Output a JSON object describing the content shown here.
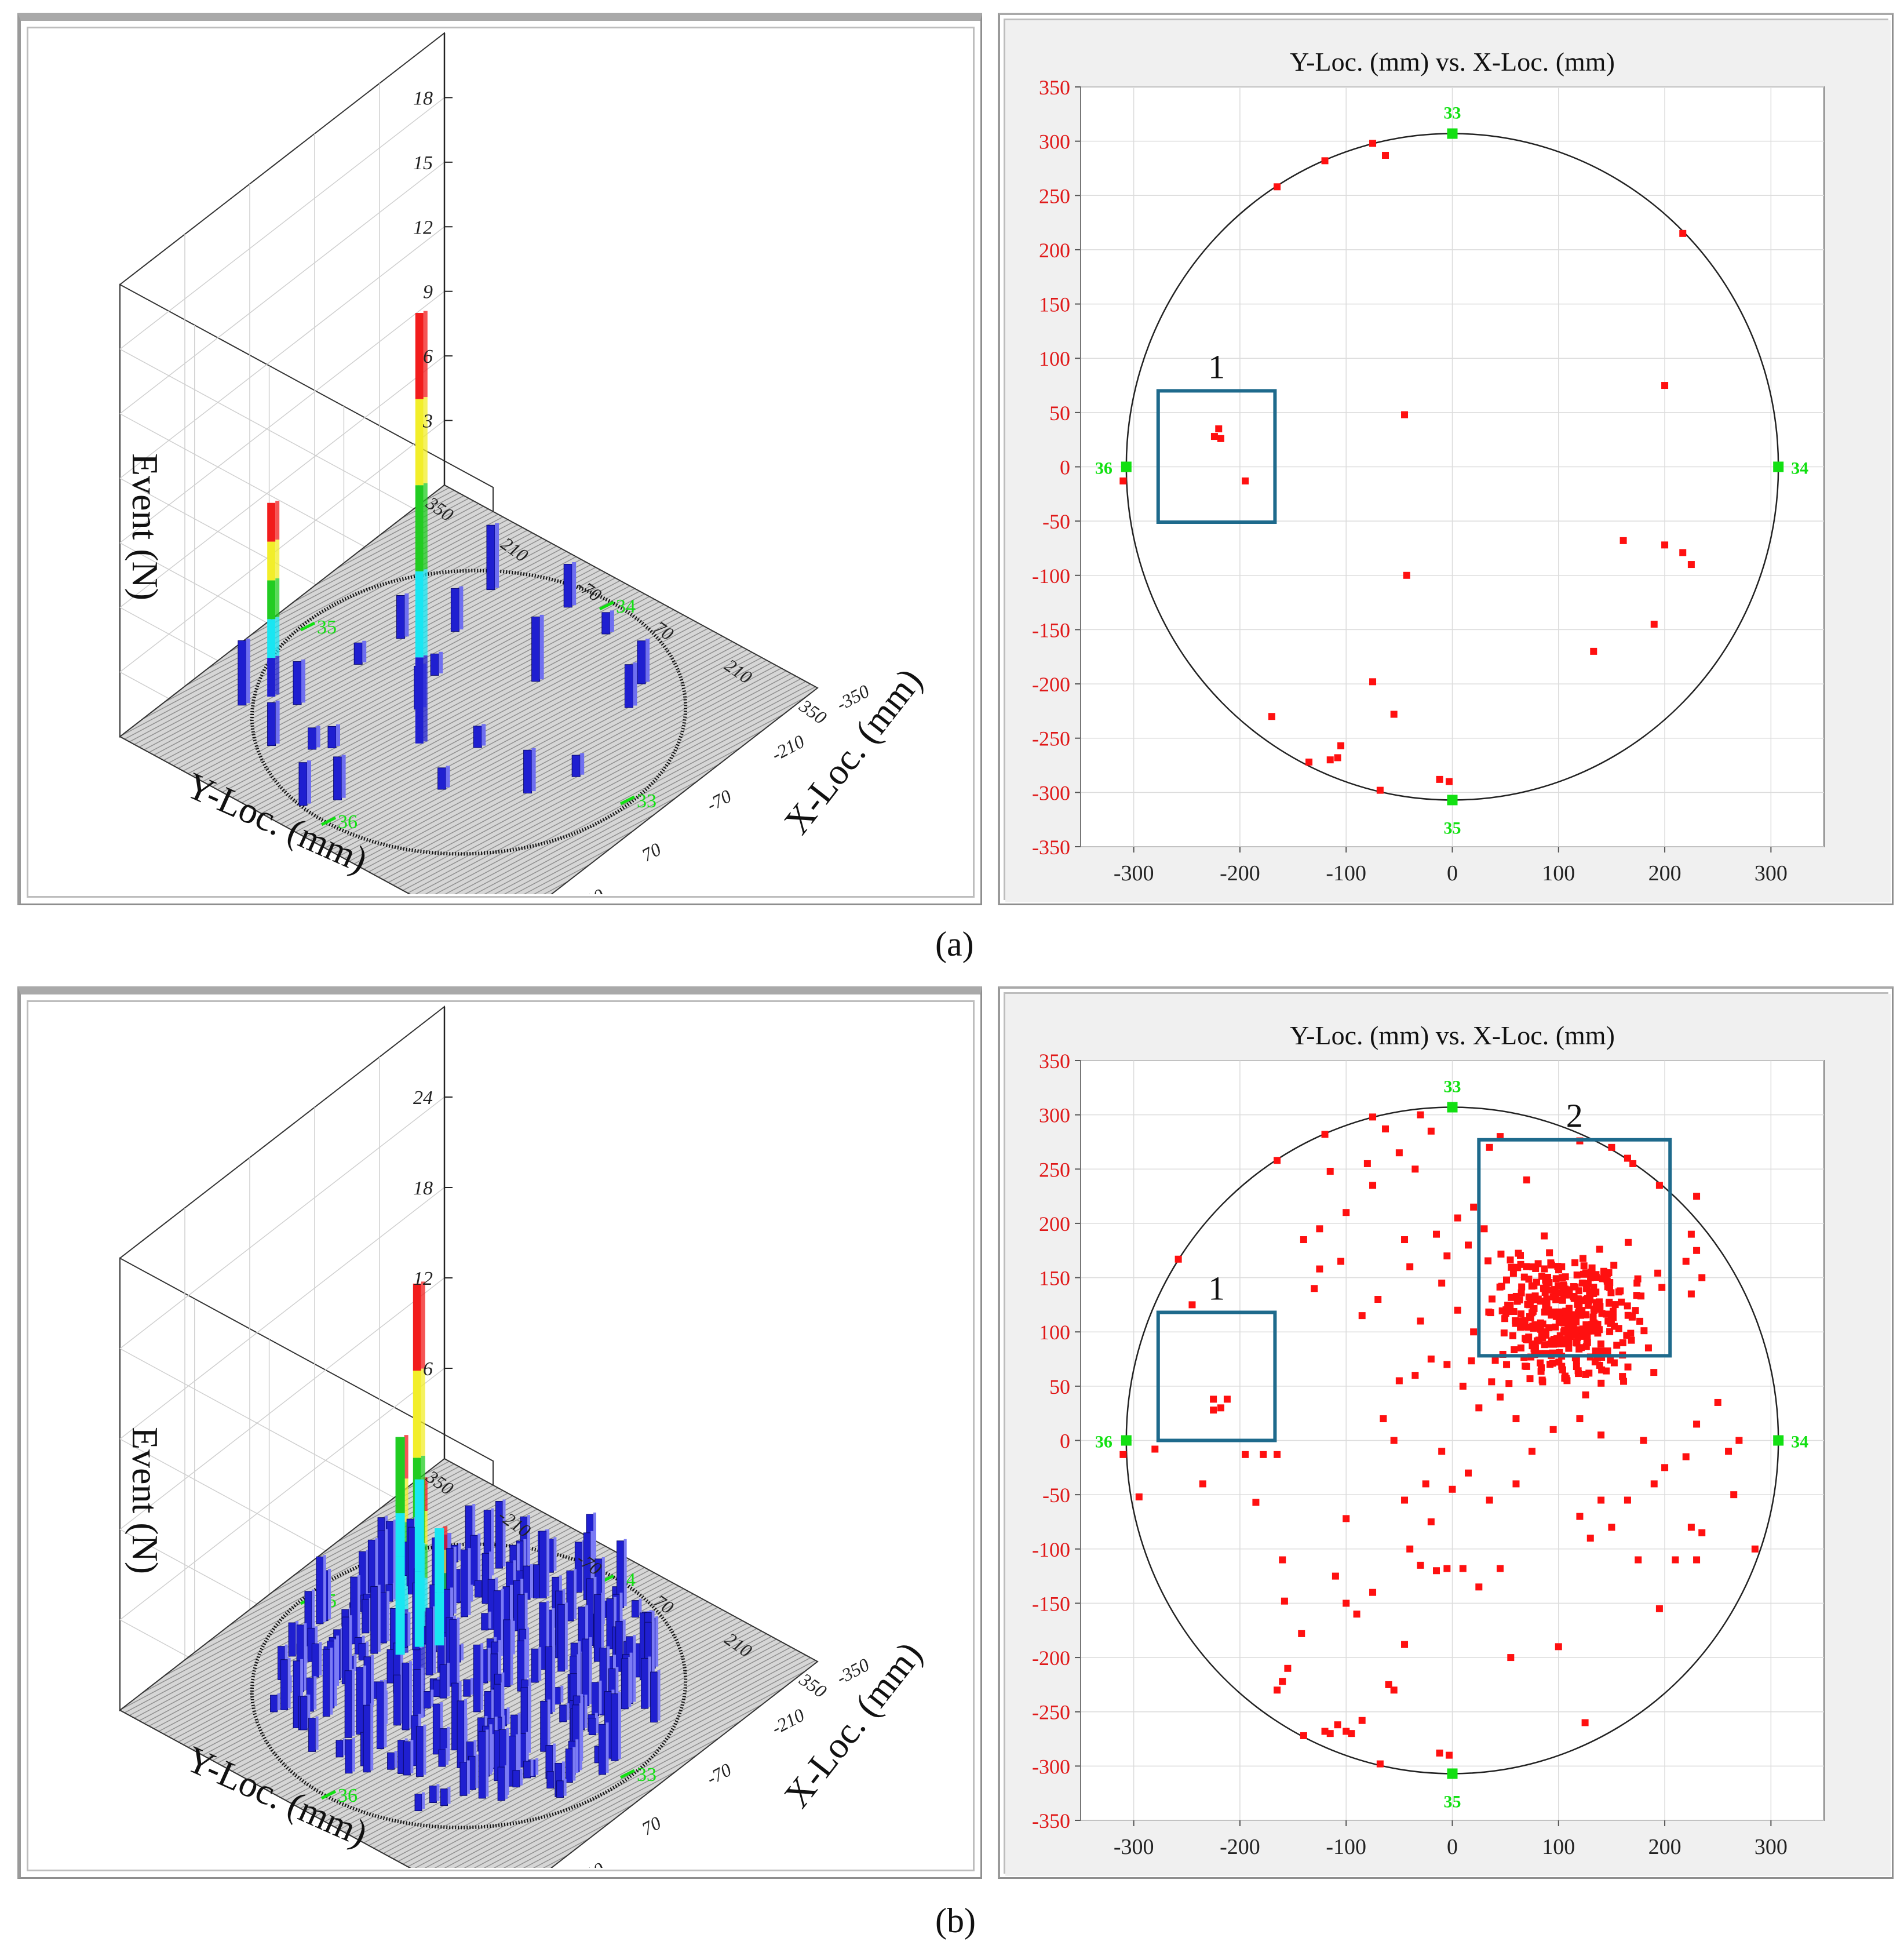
{
  "figure": {
    "caption_a": "(a)",
    "caption_b": "(b)"
  },
  "colors": {
    "bar_blue": "#1f1fd0",
    "bar_cyan": "#19e6f2",
    "bar_green": "#22cc22",
    "bar_yellow": "#f2ee2a",
    "bar_red": "#f21c1c",
    "point_red": "#ff1010",
    "sensor_green": "#12e012",
    "box_blue": "#1e6a8c",
    "tick_red": "#e01818"
  },
  "chart_data": [
    {
      "id": "a-3d",
      "type": "bar",
      "title": "",
      "zlabel": "Event (N)",
      "xlabel": "X-Loc. (mm)",
      "ylabel": "Y-Loc. (mm)",
      "z_ticks": [
        "3",
        "6",
        "9",
        "12",
        "15",
        "18"
      ],
      "y_ticks": [
        "350",
        "210",
        "-70",
        "70",
        "210",
        "350"
      ],
      "x_ticks": [
        "-350",
        "-210",
        "-70",
        "70",
        "210",
        "350"
      ],
      "sensor_labels": [
        "33",
        "34",
        "35",
        "36"
      ],
      "zmax": 20,
      "bars": [
        {
          "x": -95,
          "y": -10,
          "n": 20
        },
        {
          "x": -300,
          "y": -50,
          "n": 2
        },
        {
          "x": -260,
          "y": -20,
          "n": 2
        },
        {
          "x": -200,
          "y": -120,
          "n": 1
        },
        {
          "x": -180,
          "y": -100,
          "n": 1
        },
        {
          "x": -230,
          "y": -170,
          "n": 2
        },
        {
          "x": -150,
          "y": 80,
          "n": 1
        },
        {
          "x": -50,
          "y": 60,
          "n": 1
        },
        {
          "x": -40,
          "y": -60,
          "n": 2
        },
        {
          "x": 30,
          "y": -90,
          "n": 1
        },
        {
          "x": 60,
          "y": -180,
          "n": 2
        },
        {
          "x": 110,
          "y": 30,
          "n": 3
        },
        {
          "x": -20,
          "y": -190,
          "n": 1
        },
        {
          "x": -80,
          "y": 180,
          "n": 2
        },
        {
          "x": 150,
          "y": 170,
          "n": 2
        },
        {
          "x": 200,
          "y": 150,
          "n": 2
        },
        {
          "x": 250,
          "y": 40,
          "n": 1
        },
        {
          "x": 260,
          "y": -40,
          "n": 2
        },
        {
          "x": -10,
          "y": 210,
          "n": 1
        },
        {
          "x": -150,
          "y": -240,
          "n": 9
        },
        {
          "x": -190,
          "y": -260,
          "n": 3
        },
        {
          "x": -140,
          "y": -200,
          "n": 2
        },
        {
          "x": 120,
          "y": -130,
          "n": 2
        },
        {
          "x": 220,
          "y": -150,
          "n": 3
        }
      ]
    },
    {
      "id": "a-2d",
      "type": "scatter",
      "title": "Y-Loc. (mm) vs.  X-Loc. (mm)",
      "xlim": [
        -350,
        350
      ],
      "ylim": [
        -350,
        350
      ],
      "x_ticks": [
        "-300",
        "-200",
        "-100",
        "0",
        "100",
        "200",
        "300"
      ],
      "y_ticks": [
        "350",
        "300",
        "250",
        "200",
        "150",
        "100",
        "50",
        "0",
        "-50",
        "-100",
        "-150",
        "-200",
        "-250",
        "-300",
        "-350"
      ],
      "circle_radius": 307,
      "sensors": [
        {
          "label": "33",
          "x": 0,
          "y": 307
        },
        {
          "label": "34",
          "x": 307,
          "y": 0
        },
        {
          "label": "35",
          "x": 0,
          "y": -307
        },
        {
          "label": "36",
          "x": -307,
          "y": 0
        }
      ],
      "annotations": [
        {
          "label": "1",
          "x0": -277,
          "y0": -51,
          "x1": -167,
          "y1": 70
        }
      ],
      "points": [
        [
          -75,
          298
        ],
        [
          -120,
          282
        ],
        [
          -63,
          287
        ],
        [
          -165,
          258
        ],
        [
          217,
          215
        ],
        [
          200,
          75
        ],
        [
          -45,
          48
        ],
        [
          -220,
          35
        ],
        [
          -224,
          28
        ],
        [
          -218,
          26
        ],
        [
          -195,
          -13
        ],
        [
          -310,
          -13
        ],
        [
          -43,
          -100
        ],
        [
          161,
          -68
        ],
        [
          200,
          -72
        ],
        [
          217,
          -79
        ],
        [
          225,
          -90
        ],
        [
          190,
          -145
        ],
        [
          133,
          -170
        ],
        [
          -75,
          -198
        ],
        [
          -55,
          -228
        ],
        [
          -170,
          -230
        ],
        [
          -135,
          -272
        ],
        [
          -115,
          -270
        ],
        [
          -108,
          -268
        ],
        [
          -105,
          -257
        ],
        [
          -68,
          -298
        ],
        [
          -12,
          -288
        ],
        [
          -3,
          -290
        ]
      ]
    },
    {
      "id": "b-3d",
      "type": "bar",
      "title": "",
      "zlabel": "Event (N)",
      "xlabel": "X-Loc. (mm)",
      "ylabel": "Y-Loc. (mm)",
      "z_ticks": [
        "6",
        "12",
        "18",
        "24"
      ],
      "y_ticks": [
        "350",
        "-210",
        "-70",
        "70",
        "210",
        "350"
      ],
      "x_ticks": [
        "-350",
        "-210",
        "-70",
        "70",
        "210",
        "350"
      ],
      "sensor_labels": [
        "33",
        "34",
        "35",
        "36"
      ],
      "zmax": 26,
      "bars": [
        {
          "x": -100,
          "y": -10,
          "n": 26
        },
        {
          "x": -10,
          "y": -120,
          "n": 13
        },
        {
          "x": 20,
          "y": -110,
          "n": 10
        },
        {
          "x": 40,
          "y": -90,
          "n": 7
        },
        {
          "x": 60,
          "y": -100,
          "n": 6
        }
      ]
    },
    {
      "id": "b-2d",
      "type": "scatter",
      "title": "Y-Loc. (mm) vs.  X-Loc. (mm)",
      "xlim": [
        -350,
        350
      ],
      "ylim": [
        -350,
        350
      ],
      "x_ticks": [
        "-300",
        "-200",
        "-100",
        "0",
        "100",
        "200",
        "300"
      ],
      "y_ticks": [
        "350",
        "300",
        "250",
        "200",
        "150",
        "100",
        "50",
        "0",
        "-50",
        "-100",
        "-150",
        "-200",
        "-250",
        "-300",
        "-350"
      ],
      "circle_radius": 307,
      "sensors": [
        {
          "label": "33",
          "x": 0,
          "y": 307
        },
        {
          "label": "34",
          "x": 307,
          "y": 0
        },
        {
          "label": "35",
          "x": 0,
          "y": -307
        },
        {
          "label": "36",
          "x": -307,
          "y": 0
        }
      ],
      "annotations": [
        {
          "label": "1",
          "x0": -277,
          "y0": 0,
          "x1": -167,
          "y1": 118
        },
        {
          "label": "2",
          "x0": 25,
          "y0": 78,
          "x1": 205,
          "y1": 277
        }
      ],
      "cluster": {
        "cx": 110,
        "cy": 115,
        "sx": 45,
        "sy": 40,
        "n": 380,
        "seed": 7
      },
      "points": [
        [
          -75,
          298
        ],
        [
          -120,
          282
        ],
        [
          -63,
          287
        ],
        [
          -165,
          258
        ],
        [
          -258,
          167
        ],
        [
          -245,
          125
        ],
        [
          -225,
          38
        ],
        [
          -218,
          30
        ],
        [
          -225,
          28
        ],
        [
          -212,
          38
        ],
        [
          -195,
          -13
        ],
        [
          -178,
          -13
        ],
        [
          -165,
          -13
        ],
        [
          -235,
          -40
        ],
        [
          -280,
          -8
        ],
        [
          -310,
          -13
        ],
        [
          -295,
          -52
        ],
        [
          -185,
          -57
        ],
        [
          -160,
          -110
        ],
        [
          -158,
          -148
        ],
        [
          -142,
          -178
        ],
        [
          -155,
          -210
        ],
        [
          -165,
          -230
        ],
        [
          -160,
          -222
        ],
        [
          -140,
          -272
        ],
        [
          -120,
          -268
        ],
        [
          -115,
          -270
        ],
        [
          -108,
          -262
        ],
        [
          -100,
          -268
        ],
        [
          -95,
          -270
        ],
        [
          -85,
          -258
        ],
        [
          -68,
          -298
        ],
        [
          -12,
          -288
        ],
        [
          -3,
          -290
        ],
        [
          -100,
          -72
        ],
        [
          -110,
          -125
        ],
        [
          -100,
          -150
        ],
        [
          -90,
          -160
        ],
        [
          -75,
          -140
        ],
        [
          -60,
          -225
        ],
        [
          -55,
          -230
        ],
        [
          -45,
          -188
        ],
        [
          -40,
          -100
        ],
        [
          -30,
          -115
        ],
        [
          -20,
          -75
        ],
        [
          -15,
          -120
        ],
        [
          -5,
          -118
        ],
        [
          10,
          -118
        ],
        [
          25,
          -135
        ],
        [
          45,
          -118
        ],
        [
          55,
          -200
        ],
        [
          100,
          -190
        ],
        [
          125,
          -260
        ],
        [
          130,
          -90
        ],
        [
          120,
          -70
        ],
        [
          140,
          -55
        ],
        [
          165,
          -55
        ],
        [
          190,
          -40
        ],
        [
          225,
          -80
        ],
        [
          235,
          -85
        ],
        [
          210,
          -110
        ],
        [
          230,
          -110
        ],
        [
          195,
          -155
        ],
        [
          175,
          -110
        ],
        [
          150,
          -80
        ],
        [
          265,
          -50
        ],
        [
          285,
          -100
        ],
        [
          200,
          -25
        ],
        [
          220,
          -15
        ],
        [
          250,
          35
        ],
        [
          270,
          0
        ],
        [
          260,
          -10
        ],
        [
          230,
          15
        ],
        [
          180,
          0
        ],
        [
          140,
          5
        ],
        [
          120,
          20
        ],
        [
          95,
          10
        ],
        [
          75,
          -10
        ],
        [
          60,
          -40
        ],
        [
          35,
          -55
        ],
        [
          15,
          -30
        ],
        [
          0,
          -45
        ],
        [
          -10,
          -10
        ],
        [
          -25,
          -40
        ],
        [
          -45,
          -55
        ],
        [
          -55,
          0
        ],
        [
          -65,
          20
        ],
        [
          -50,
          55
        ],
        [
          -35,
          60
        ],
        [
          -20,
          75
        ],
        [
          -5,
          70
        ],
        [
          10,
          50
        ],
        [
          25,
          30
        ],
        [
          45,
          40
        ],
        [
          60,
          20
        ],
        [
          -100,
          210
        ],
        [
          -115,
          248
        ],
        [
          -80,
          255
        ],
        [
          -75,
          235
        ],
        [
          -50,
          265
        ],
        [
          -35,
          250
        ],
        [
          -30,
          300
        ],
        [
          -20,
          285
        ],
        [
          -140,
          185
        ],
        [
          -125,
          195
        ],
        [
          -105,
          165
        ],
        [
          -85,
          115
        ],
        [
          -70,
          130
        ],
        [
          -45,
          185
        ],
        [
          -40,
          160
        ],
        [
          -30,
          110
        ],
        [
          -15,
          190
        ],
        [
          -5,
          170
        ],
        [
          5,
          205
        ],
        [
          15,
          180
        ],
        [
          20,
          215
        ],
        [
          30,
          195
        ],
        [
          -130,
          140
        ],
        [
          -125,
          158
        ],
        [
          -10,
          145
        ],
        [
          5,
          120
        ],
        [
          20,
          100
        ],
        [
          35,
          270
        ],
        [
          45,
          280
        ],
        [
          70,
          240
        ],
        [
          120,
          276
        ],
        [
          150,
          270
        ],
        [
          165,
          260
        ],
        [
          170,
          255
        ],
        [
          195,
          235
        ],
        [
          230,
          225
        ],
        [
          225,
          190
        ],
        [
          230,
          175
        ],
        [
          220,
          165
        ],
        [
          235,
          150
        ],
        [
          225,
          135
        ]
      ]
    }
  ]
}
